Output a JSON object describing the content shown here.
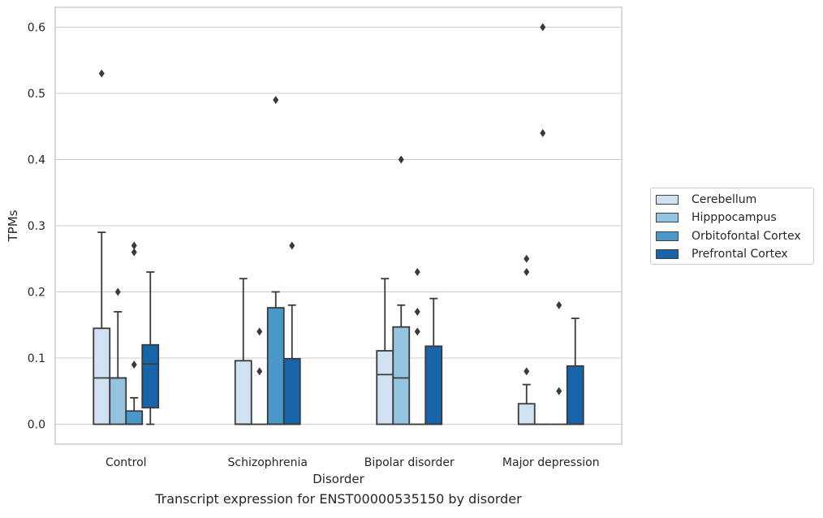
{
  "caption": "Transcript expression for ENST00000535150 by disorder",
  "chart_data": {
    "type": "box",
    "xlabel": "Disorder",
    "ylabel": "TPMs",
    "ylim": [
      -0.03,
      0.63
    ],
    "yticks": [
      "0.0",
      "0.1",
      "0.2",
      "0.3",
      "0.4",
      "0.5",
      "0.6"
    ],
    "ytick_values": [
      0,
      0.1,
      0.2,
      0.3,
      0.4,
      0.5,
      0.6
    ],
    "grid": "horizontal",
    "legend_position": "right",
    "categories": [
      "Control",
      "Schizophrenia",
      "Bipolar disorder",
      "Major depression"
    ],
    "series": [
      {
        "name": "Cerebellum",
        "color": "#d0e1f2",
        "boxes": [
          {
            "q1": 0.0,
            "median": 0.07,
            "q3": 0.145,
            "whisker_low": 0.0,
            "whisker_high": 0.29,
            "outliers": [
              0.53
            ]
          },
          {
            "q1": 0.0,
            "median": 0.0,
            "q3": 0.096,
            "whisker_low": 0.0,
            "whisker_high": 0.22,
            "outliers": []
          },
          {
            "q1": 0.0,
            "median": 0.075,
            "q3": 0.111,
            "whisker_low": 0.0,
            "whisker_high": 0.22,
            "outliers": []
          },
          {
            "q1": 0.0,
            "median": 0.0,
            "q3": 0.031,
            "whisker_low": 0.0,
            "whisker_high": 0.06,
            "outliers": [
              0.08,
              0.23,
              0.25
            ]
          }
        ]
      },
      {
        "name": "Hipppocampus",
        "color": "#94c4df",
        "boxes": [
          {
            "q1": 0.0,
            "median": 0.07,
            "q3": 0.07,
            "whisker_low": 0.0,
            "whisker_high": 0.17,
            "outliers": [
              0.2
            ]
          },
          {
            "q1": 0.0,
            "median": 0.0,
            "q3": 0.0,
            "whisker_low": 0.0,
            "whisker_high": 0.0,
            "outliers": [
              0.08,
              0.14
            ]
          },
          {
            "q1": 0.0,
            "median": 0.07,
            "q3": 0.147,
            "whisker_low": 0.0,
            "whisker_high": 0.18,
            "outliers": [
              0.4
            ]
          },
          {
            "q1": 0.0,
            "median": 0.0,
            "q3": 0.0,
            "whisker_low": 0.0,
            "whisker_high": 0.0,
            "outliers": [
              0.44,
              0.6
            ]
          }
        ]
      },
      {
        "name": "Orbitofontal Cortex",
        "color": "#4a98c9",
        "boxes": [
          {
            "q1": 0.0,
            "median": 0.0,
            "q3": 0.02,
            "whisker_low": 0.0,
            "whisker_high": 0.04,
            "outliers": [
              0.09,
              0.26,
              0.27
            ]
          },
          {
            "q1": 0.0,
            "median": 0.0,
            "q3": 0.176,
            "whisker_low": 0.0,
            "whisker_high": 0.2,
            "outliers": [
              0.49
            ]
          },
          {
            "q1": 0.0,
            "median": 0.0,
            "q3": 0.0,
            "whisker_low": 0.0,
            "whisker_high": 0.0,
            "outliers": [
              0.14,
              0.17,
              0.23
            ]
          },
          {
            "q1": 0.0,
            "median": 0.0,
            "q3": 0.0,
            "whisker_low": 0.0,
            "whisker_high": 0.0,
            "outliers": [
              0.05,
              0.18
            ]
          }
        ]
      },
      {
        "name": "Prefrontal Cortex",
        "color": "#1764ab",
        "boxes": [
          {
            "q1": 0.025,
            "median": 0.091,
            "q3": 0.12,
            "whisker_low": 0.0,
            "whisker_high": 0.23,
            "outliers": []
          },
          {
            "q1": 0.0,
            "median": 0.0,
            "q3": 0.099,
            "whisker_low": 0.0,
            "whisker_high": 0.18,
            "outliers": [
              0.27
            ]
          },
          {
            "q1": 0.0,
            "median": 0.0,
            "q3": 0.118,
            "whisker_low": 0.0,
            "whisker_high": 0.19,
            "outliers": []
          },
          {
            "q1": 0.0,
            "median": 0.0,
            "q3": 0.088,
            "whisker_low": 0.0,
            "whisker_high": 0.16,
            "outliers": []
          }
        ]
      }
    ]
  }
}
